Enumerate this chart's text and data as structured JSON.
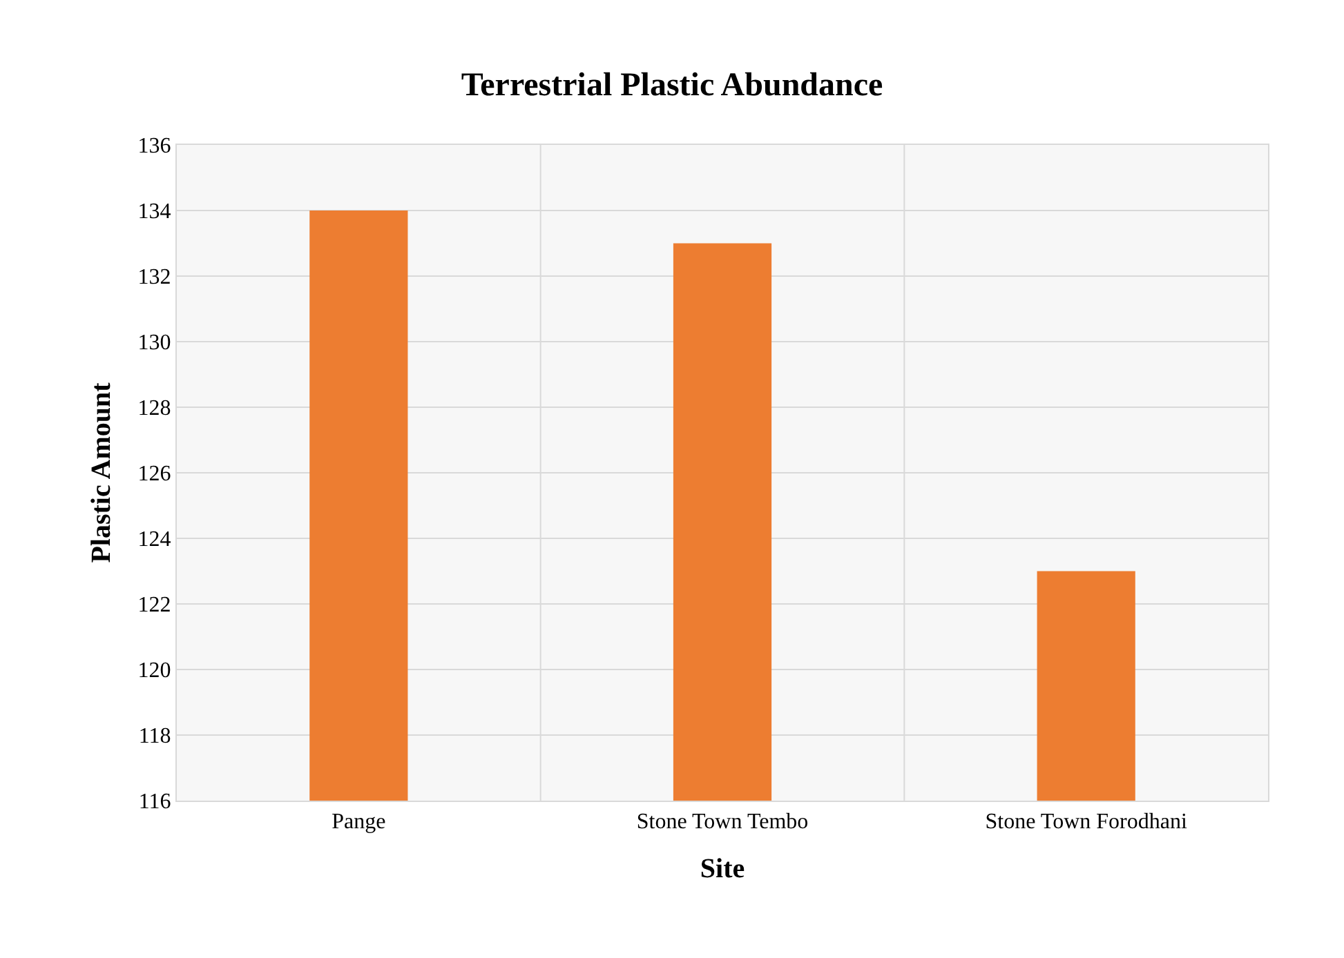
{
  "chart_data": {
    "type": "bar",
    "title": "Terrestrial Plastic Abundance",
    "xlabel": "Site",
    "ylabel": "Plastic Amount",
    "categories": [
      "Pange",
      "Stone Town Tembo",
      "Stone Town Forodhani"
    ],
    "values": [
      134,
      133,
      123
    ],
    "color": "#ed7d31",
    "ylim": [
      116,
      136
    ],
    "yticks": [
      116,
      118,
      120,
      122,
      124,
      126,
      128,
      130,
      132,
      134,
      136
    ],
    "grid": true
  }
}
